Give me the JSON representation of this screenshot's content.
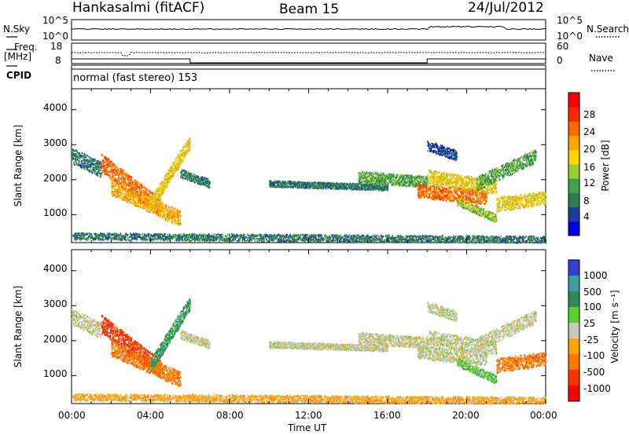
{
  "header": {
    "site": "Hankasalmi (fitACF)",
    "beam": "Beam 15",
    "date": "24/Jul/2012"
  },
  "panels": {
    "noise": {
      "left_label": "N.Sky",
      "right_label": "N.Search",
      "left_ticks": [
        "10^5",
        "10^0"
      ],
      "right_ticks": [
        "10^5",
        "10^0"
      ]
    },
    "freq": {
      "left_label_top": "Freq.",
      "left_label_bottom": "[MHz]",
      "right_label": "Nave",
      "left_ticks": [
        "18",
        "8"
      ],
      "right_ticks": [
        "60",
        "0"
      ]
    },
    "cpid": {
      "label": "CPID",
      "text": "normal (fast stereo) 153"
    }
  },
  "colors": {
    "power_scale": [
      "#0000ee",
      "#1e3c9c",
      "#2f7d4e",
      "#3fa34a",
      "#9acd32",
      "#ffd700",
      "#ffa500",
      "#ff6a00",
      "#ff2a00",
      "#ff0000"
    ],
    "velocity_scale": [
      "#2f3fd0",
      "#3ba0a0",
      "#2e8b57",
      "#5ad12a",
      "#c8c8c0",
      "#ffa500",
      "#ff7700",
      "#ff3300",
      "#ff0000"
    ],
    "ground_scatter": "#c8c8c0"
  },
  "chart_data": [
    {
      "type": "heatmap",
      "name": "power",
      "ylabel": "Slant Range [km]",
      "ylim": [
        200,
        4600
      ],
      "yticks": [
        "1000",
        "2000",
        "3000",
        "4000"
      ],
      "xlabel": "",
      "xticks": [
        "00:00",
        "04:00",
        "08:00",
        "12:00",
        "16:00",
        "20:00",
        "00:00"
      ],
      "colorbar_label": "Power [dB]",
      "colorbar_ticks": [
        "4",
        "8",
        "12",
        "16",
        "20",
        "24",
        "28"
      ],
      "colorbar_range": [
        0,
        32
      ]
    },
    {
      "type": "heatmap",
      "name": "velocity",
      "ylabel": "Slant Range [km]",
      "ylim": [
        200,
        4600
      ],
      "yticks": [
        "1000",
        "2000",
        "3000",
        "4000"
      ],
      "xlabel": "Time UT",
      "xticks": [
        "00:00",
        "04:00",
        "08:00",
        "12:00",
        "16:00",
        "20:00",
        "00:00"
      ],
      "colorbar_label": "Velocity [m s⁻¹]",
      "colorbar_ticks": [
        "1000",
        "500",
        "100",
        "25",
        "-25",
        "-100",
        "-500",
        "-1000"
      ]
    }
  ]
}
